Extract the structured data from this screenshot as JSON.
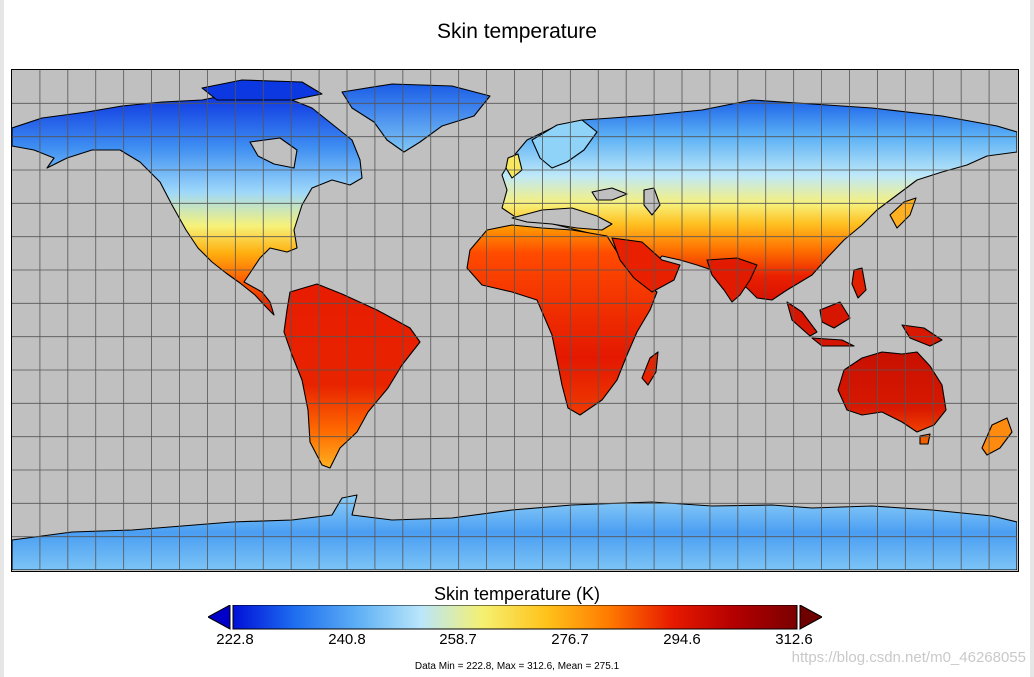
{
  "title": "Skin temperature",
  "colorbar": {
    "title": "Skin temperature (K)",
    "min": 222.8,
    "max": 312.6,
    "ticks": [
      "222.8",
      "240.8",
      "258.7",
      "276.7",
      "294.6",
      "312.6"
    ],
    "colors": [
      "#0010d8",
      "#1f6ff0",
      "#5fb0f5",
      "#b9e6fa",
      "#f5f070",
      "#ffc21a",
      "#ff7a00",
      "#e81a00",
      "#b40000",
      "#7a0000"
    ],
    "extend": "both",
    "extend_min_color": "#0000c8",
    "extend_max_color": "#6e0000"
  },
  "stats": "Data Min = 222.8, Max = 312.6, Mean = 275.1",
  "watermark": "https://blog.csdn.net/m0_46268055",
  "map": {
    "projection": "equirectangular",
    "ocean_color": "#c0c0c0",
    "grid": true,
    "grid_spacing_deg": 10,
    "coastlines": true
  }
}
